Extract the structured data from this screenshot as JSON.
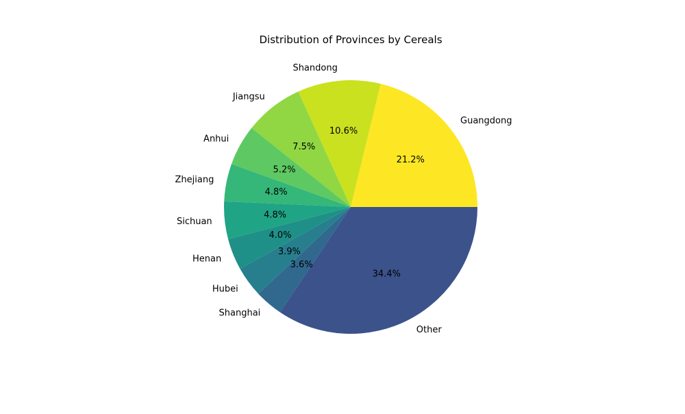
{
  "chart_data": {
    "type": "pie",
    "title": "Distribution of Provinces by Cereals",
    "slices": [
      {
        "label": "Guangdong",
        "value": 21.2,
        "pct_label": "21.2%",
        "color": "#fde725"
      },
      {
        "label": "Shandong",
        "value": 10.6,
        "pct_label": "10.6%",
        "color": "#cae11f"
      },
      {
        "label": "Jiangsu",
        "value": 7.5,
        "pct_label": "7.5%",
        "color": "#90d743"
      },
      {
        "label": "Anhui",
        "value": 5.2,
        "pct_label": "5.2%",
        "color": "#5ec962"
      },
      {
        "label": "Zhejiang",
        "value": 4.8,
        "pct_label": "4.8%",
        "color": "#35b779"
      },
      {
        "label": "Sichuan",
        "value": 4.8,
        "pct_label": "4.8%",
        "color": "#20a486"
      },
      {
        "label": "Henan",
        "value": 4.0,
        "pct_label": "4.0%",
        "color": "#1f9088"
      },
      {
        "label": "Hubei",
        "value": 3.9,
        "pct_label": "3.9%",
        "color": "#277f8e"
      },
      {
        "label": "Shanghai",
        "value": 3.6,
        "pct_label": "3.6%",
        "color": "#31688e"
      },
      {
        "label": "Other",
        "value": 34.4,
        "pct_label": "34.4%",
        "color": "#3b528b"
      }
    ],
    "start_angle": "3 o'clock",
    "direction": "counterclockwise",
    "legend": "none"
  }
}
